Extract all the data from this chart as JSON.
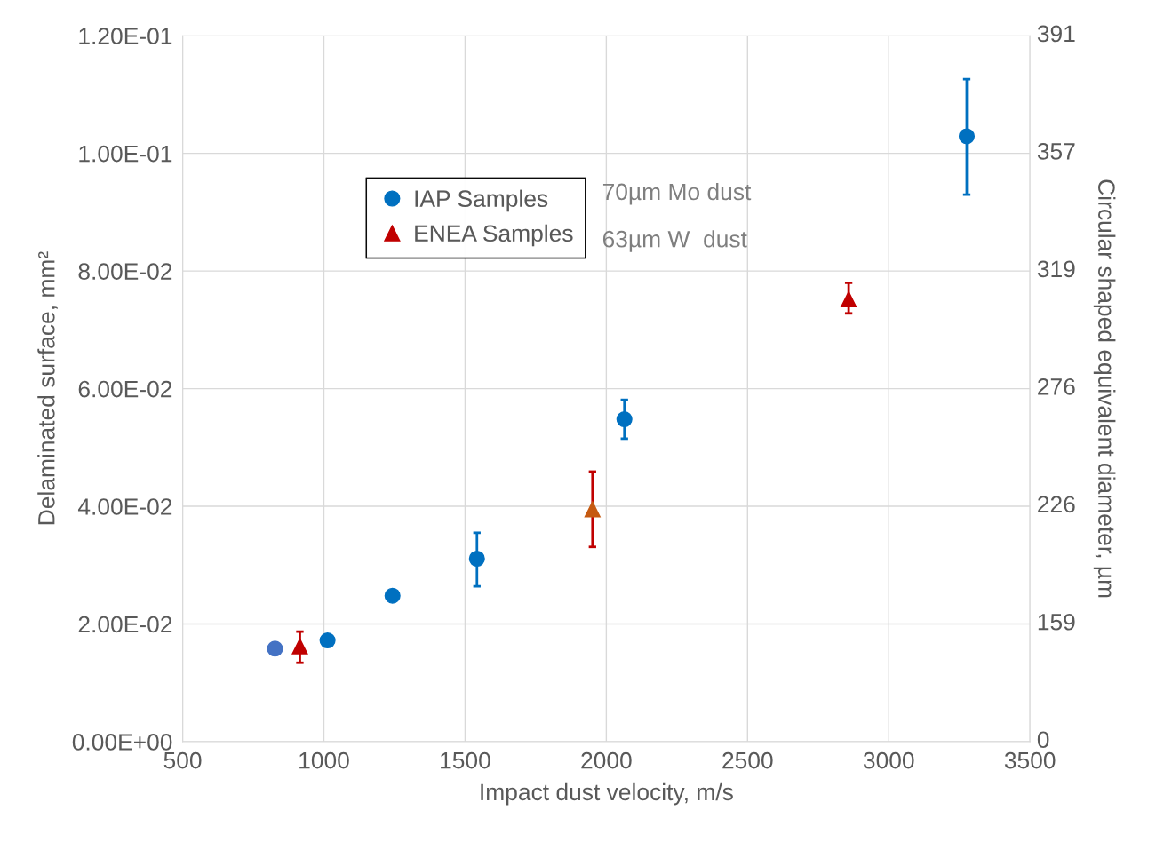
{
  "chart_data": {
    "type": "scatter",
    "xlabel": "Impact dust velocity, m/s",
    "ylabel": "Delaminated surface, mm²",
    "y2label": "Circular shaped equivalent diameter, µm",
    "xlim": [
      500,
      3500
    ],
    "xticks": [
      500,
      1000,
      1500,
      2000,
      2500,
      3000,
      3500
    ],
    "ylim": [
      0,
      0.12
    ],
    "yticks": [
      {
        "value": 0,
        "label": "0.00E+00"
      },
      {
        "value": 0.02,
        "label": "2.00E-02"
      },
      {
        "value": 0.04,
        "label": "4.00E-02"
      },
      {
        "value": 0.06,
        "label": "6.00E-02"
      },
      {
        "value": 0.08,
        "label": "8.00E-02"
      },
      {
        "value": 0.1,
        "label": "1.00E-01"
      },
      {
        "value": 0.12,
        "label": "1.20E-01"
      }
    ],
    "grid": true,
    "legend": "top left",
    "annotations": [
      "70µm Mo dust",
      "63µm W  dust",
      "0",
      "159",
      "226",
      "276",
      "319",
      "357",
      "391"
    ],
    "series": [
      {
        "name": "IAP Samples",
        "color": "#0070c0",
        "marker": "circle",
        "colors": [
          "#4472c4",
          "#0070c0",
          "#0070c0",
          "#0070c0",
          "#0070c0",
          "#0070c0"
        ],
        "x": [
          827,
          1013,
          1243,
          1542,
          2064,
          3276
        ],
        "values": [
          0.0158,
          0.0172,
          0.0248,
          0.0311,
          0.0548,
          0.1029
        ],
        "errors": [
          null,
          null,
          null,
          [
            0.0264,
            0.0355
          ],
          [
            0.0515,
            0.0581
          ],
          [
            0.093,
            0.1126
          ]
        ]
      },
      {
        "name": "ENEA Samples",
        "color": "#c00000",
        "marker": "triangle",
        "colors": [
          "#c00000",
          "#c55a11",
          "#c00000"
        ],
        "x": [
          915,
          1951,
          2858
        ],
        "values": [
          0.0162,
          0.0395,
          0.0752
        ],
        "errors": [
          [
            0.0134,
            0.0187
          ],
          [
            0.0331,
            0.0459
          ],
          [
            0.0728,
            0.078
          ]
        ]
      }
    ]
  }
}
